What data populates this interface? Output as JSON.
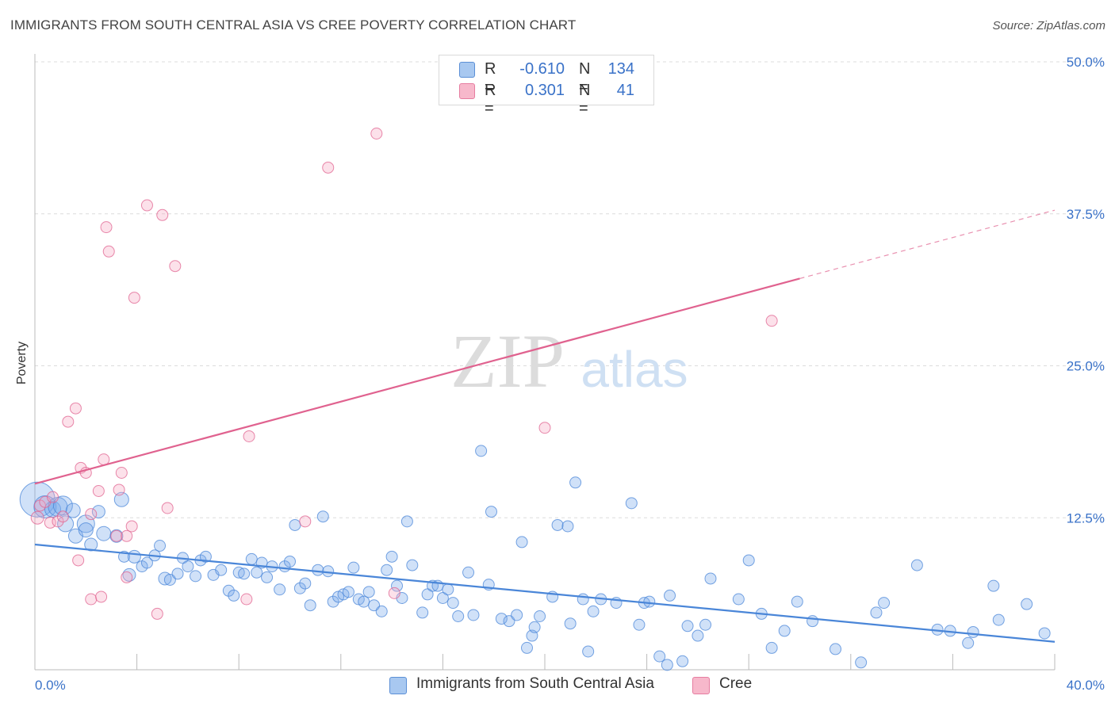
{
  "header": {
    "title": "IMMIGRANTS FROM SOUTH CENTRAL ASIA VS CREE POVERTY CORRELATION CHART",
    "source": "Source: ZipAtlas.com"
  },
  "watermark": {
    "part1": "ZIP",
    "part2": "atlas"
  },
  "legend": {
    "rows": [
      {
        "r_label": "R =",
        "r_value": "-0.610",
        "n_label": "N =",
        "n_value": "134",
        "color": "#a8c8f0",
        "border": "#5b8fd6"
      },
      {
        "r_label": "R =",
        "r_value": "0.301",
        "n_label": "N =",
        "n_value": "41",
        "color": "#f7b8cb",
        "border": "#e67da0"
      }
    ]
  },
  "colors": {
    "blue": "#4a86d8",
    "blue_fill": "rgba(120,170,235,0.35)",
    "pink": "#e0628f",
    "pink_fill": "rgba(245,170,195,0.35)",
    "tick_label": "#3a72c8"
  },
  "chart_data": {
    "type": "scatter",
    "title": "IMMIGRANTS FROM SOUTH CENTRAL ASIA VS CREE POVERTY CORRELATION CHART",
    "xlabel": "",
    "ylabel": "Poverty",
    "xlim": [
      0,
      40
    ],
    "ylim": [
      0,
      50
    ],
    "x_tick_labels": [
      "0.0%",
      "40.0%"
    ],
    "y_ticks": [
      12.5,
      25.0,
      37.5,
      50.0
    ],
    "y_tick_labels": [
      "12.5%",
      "25.0%",
      "37.5%",
      "50.0%"
    ],
    "grid": true,
    "legend_position": "top-center",
    "series": [
      {
        "name": "Immigrants from South Central Asia",
        "color": "#4a86d8",
        "trend": {
          "x": [
            0,
            40
          ],
          "y": [
            10.3,
            2.3
          ],
          "solid_until": 40
        },
        "points": [
          [
            0.1,
            14.0,
            22
          ],
          [
            0.4,
            13.4,
            14
          ],
          [
            0.7,
            13.2,
            10
          ],
          [
            0.9,
            13.4,
            12
          ],
          [
            1.1,
            13.5,
            12
          ],
          [
            1.2,
            12.0,
            10
          ],
          [
            1.5,
            13.1,
            9
          ],
          [
            1.6,
            11.0,
            9
          ],
          [
            2.0,
            12.0,
            11
          ],
          [
            2.0,
            11.5,
            9
          ],
          [
            2.2,
            10.3,
            8
          ],
          [
            2.5,
            13.0,
            8
          ],
          [
            2.7,
            11.2,
            9
          ],
          [
            3.2,
            11.0,
            8
          ],
          [
            3.4,
            14.0,
            9
          ],
          [
            3.5,
            9.3,
            7
          ],
          [
            3.7,
            7.8,
            8
          ],
          [
            3.9,
            9.3,
            8
          ],
          [
            4.2,
            8.5,
            7
          ],
          [
            4.4,
            8.8,
            7
          ],
          [
            4.7,
            9.4,
            7
          ],
          [
            4.9,
            10.2,
            7
          ],
          [
            5.1,
            7.5,
            8
          ],
          [
            5.3,
            7.4,
            7
          ],
          [
            5.6,
            7.9,
            7
          ],
          [
            5.8,
            9.2,
            7
          ],
          [
            6.0,
            8.5,
            7
          ],
          [
            6.3,
            7.7,
            7
          ],
          [
            6.5,
            9.0,
            7
          ],
          [
            6.7,
            9.3,
            7
          ],
          [
            7.0,
            7.8,
            7
          ],
          [
            7.3,
            8.2,
            7
          ],
          [
            7.6,
            6.5,
            7
          ],
          [
            7.8,
            6.1,
            7
          ],
          [
            8.0,
            8.0,
            7
          ],
          [
            8.2,
            7.9,
            7
          ],
          [
            8.5,
            9.1,
            7
          ],
          [
            8.7,
            8.0,
            7
          ],
          [
            8.9,
            8.8,
            7
          ],
          [
            9.1,
            7.6,
            7
          ],
          [
            9.3,
            8.5,
            7
          ],
          [
            9.6,
            6.6,
            7
          ],
          [
            9.8,
            8.5,
            7
          ],
          [
            10.0,
            8.9,
            7
          ],
          [
            10.2,
            11.9,
            7
          ],
          [
            10.4,
            6.7,
            7
          ],
          [
            10.6,
            7.1,
            7
          ],
          [
            10.8,
            5.3,
            7
          ],
          [
            11.1,
            8.2,
            7
          ],
          [
            11.3,
            12.6,
            7
          ],
          [
            11.5,
            8.1,
            7
          ],
          [
            11.7,
            5.6,
            7
          ],
          [
            11.9,
            6.0,
            7
          ],
          [
            12.1,
            6.2,
            7
          ],
          [
            12.3,
            6.4,
            7
          ],
          [
            12.5,
            8.4,
            7
          ],
          [
            12.7,
            5.8,
            7
          ],
          [
            12.9,
            5.6,
            7
          ],
          [
            13.1,
            6.4,
            7
          ],
          [
            13.3,
            5.3,
            7
          ],
          [
            13.6,
            4.8,
            7
          ],
          [
            13.8,
            8.2,
            7
          ],
          [
            14.0,
            9.3,
            7
          ],
          [
            14.2,
            6.9,
            7
          ],
          [
            14.4,
            5.9,
            7
          ],
          [
            14.6,
            12.2,
            7
          ],
          [
            14.8,
            8.6,
            7
          ],
          [
            15.2,
            4.7,
            7
          ],
          [
            15.4,
            6.2,
            7
          ],
          [
            15.6,
            6.9,
            7
          ],
          [
            15.8,
            6.9,
            7
          ],
          [
            16.0,
            5.9,
            7
          ],
          [
            16.2,
            6.6,
            7
          ],
          [
            16.4,
            5.5,
            7
          ],
          [
            16.6,
            4.4,
            7
          ],
          [
            17.0,
            8.0,
            7
          ],
          [
            17.2,
            4.5,
            7
          ],
          [
            17.5,
            18.0,
            7
          ],
          [
            17.8,
            7.0,
            7
          ],
          [
            17.9,
            13.0,
            7
          ],
          [
            18.3,
            4.2,
            7
          ],
          [
            18.6,
            4.0,
            7
          ],
          [
            18.9,
            4.5,
            7
          ],
          [
            19.1,
            10.5,
            7
          ],
          [
            19.3,
            1.8,
            7
          ],
          [
            19.5,
            2.8,
            7
          ],
          [
            19.6,
            3.5,
            7
          ],
          [
            19.8,
            4.4,
            7
          ],
          [
            20.3,
            6.0,
            7
          ],
          [
            20.5,
            11.9,
            7
          ],
          [
            20.9,
            11.8,
            7
          ],
          [
            21.0,
            3.8,
            7
          ],
          [
            21.2,
            15.4,
            7
          ],
          [
            21.5,
            5.8,
            7
          ],
          [
            21.7,
            1.5,
            7
          ],
          [
            21.9,
            4.8,
            7
          ],
          [
            22.2,
            5.8,
            7
          ],
          [
            22.8,
            5.5,
            7
          ],
          [
            23.4,
            13.7,
            7
          ],
          [
            23.7,
            3.7,
            7
          ],
          [
            23.9,
            5.5,
            7
          ],
          [
            24.1,
            5.6,
            7
          ],
          [
            24.5,
            1.1,
            7
          ],
          [
            24.8,
            0.4,
            7
          ],
          [
            24.9,
            6.1,
            7
          ],
          [
            25.4,
            0.7,
            7
          ],
          [
            25.6,
            3.6,
            7
          ],
          [
            26.0,
            2.8,
            7
          ],
          [
            26.3,
            3.7,
            7
          ],
          [
            26.5,
            7.5,
            7
          ],
          [
            27.6,
            5.8,
            7
          ],
          [
            28.0,
            9.0,
            7
          ],
          [
            28.5,
            4.6,
            7
          ],
          [
            28.9,
            1.8,
            7
          ],
          [
            29.4,
            3.2,
            7
          ],
          [
            29.9,
            5.6,
            7
          ],
          [
            30.5,
            4.0,
            7
          ],
          [
            31.4,
            1.7,
            7
          ],
          [
            32.4,
            0.6,
            7
          ],
          [
            33.0,
            4.7,
            7
          ],
          [
            33.3,
            5.5,
            7
          ],
          [
            34.6,
            8.6,
            7
          ],
          [
            35.4,
            3.3,
            7
          ],
          [
            35.9,
            3.2,
            7
          ],
          [
            36.6,
            2.2,
            7
          ],
          [
            36.8,
            3.1,
            7
          ],
          [
            37.6,
            6.9,
            7
          ],
          [
            37.8,
            4.1,
            7
          ],
          [
            38.9,
            5.4,
            7
          ],
          [
            39.6,
            3.0,
            7
          ]
        ]
      },
      {
        "name": "Cree",
        "color": "#e0628f",
        "trend": {
          "x": [
            0,
            40
          ],
          "y": [
            15.3,
            37.8
          ],
          "solid_until": 30
        },
        "points": [
          [
            0.1,
            12.5,
            8
          ],
          [
            0.2,
            13.5,
            7
          ],
          [
            0.4,
            13.8,
            7
          ],
          [
            0.6,
            12.1,
            7
          ],
          [
            0.7,
            14.2,
            7
          ],
          [
            0.9,
            12.2,
            7
          ],
          [
            1.1,
            12.6,
            7
          ],
          [
            1.3,
            20.4,
            7
          ],
          [
            1.6,
            21.5,
            7
          ],
          [
            1.7,
            9.0,
            7
          ],
          [
            1.8,
            16.6,
            7
          ],
          [
            2.0,
            16.2,
            7
          ],
          [
            2.2,
            12.8,
            7
          ],
          [
            2.2,
            5.8,
            7
          ],
          [
            2.5,
            14.7,
            7
          ],
          [
            2.6,
            6.0,
            7
          ],
          [
            2.7,
            17.3,
            7
          ],
          [
            2.8,
            36.4,
            7
          ],
          [
            2.9,
            34.4,
            7
          ],
          [
            3.2,
            11.0,
            7
          ],
          [
            3.3,
            14.8,
            7
          ],
          [
            3.4,
            16.2,
            7
          ],
          [
            3.6,
            11.0,
            7
          ],
          [
            3.6,
            7.6,
            7
          ],
          [
            3.8,
            11.8,
            7
          ],
          [
            3.9,
            30.6,
            7
          ],
          [
            4.4,
            38.2,
            7
          ],
          [
            4.8,
            4.6,
            7
          ],
          [
            5.0,
            37.4,
            7
          ],
          [
            5.2,
            13.3,
            7
          ],
          [
            5.5,
            33.2,
            7
          ],
          [
            8.3,
            5.8,
            7
          ],
          [
            8.4,
            19.2,
            7
          ],
          [
            10.6,
            12.2,
            7
          ],
          [
            11.5,
            41.3,
            7
          ],
          [
            13.4,
            44.1,
            7
          ],
          [
            14.1,
            6.3,
            7
          ],
          [
            20.0,
            19.9,
            7
          ],
          [
            28.9,
            28.7,
            7
          ]
        ]
      }
    ]
  }
}
